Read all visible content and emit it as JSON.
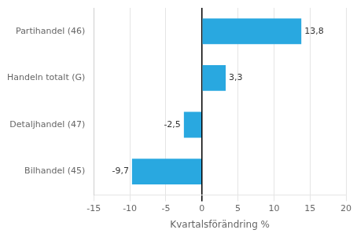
{
  "chart_data": {
    "type": "bar",
    "orientation": "horizontal",
    "categories": [
      "Bilhandel (45)",
      "Detaljhandel (47)",
      "Handeln totalt (G)",
      "Partihandel (46)"
    ],
    "values": [
      -9.7,
      -2.5,
      3.3,
      13.8
    ],
    "value_labels": [
      "-9,7",
      "-2,5",
      "3,3",
      "13,8"
    ],
    "data_labels": true,
    "color": "#29a8e0",
    "xlabel": "Kvartalsförändring %",
    "xlim": [
      -15,
      20
    ],
    "xticks": [
      -15,
      -10,
      -5,
      0,
      5,
      10,
      15,
      20
    ],
    "grid": true
  }
}
